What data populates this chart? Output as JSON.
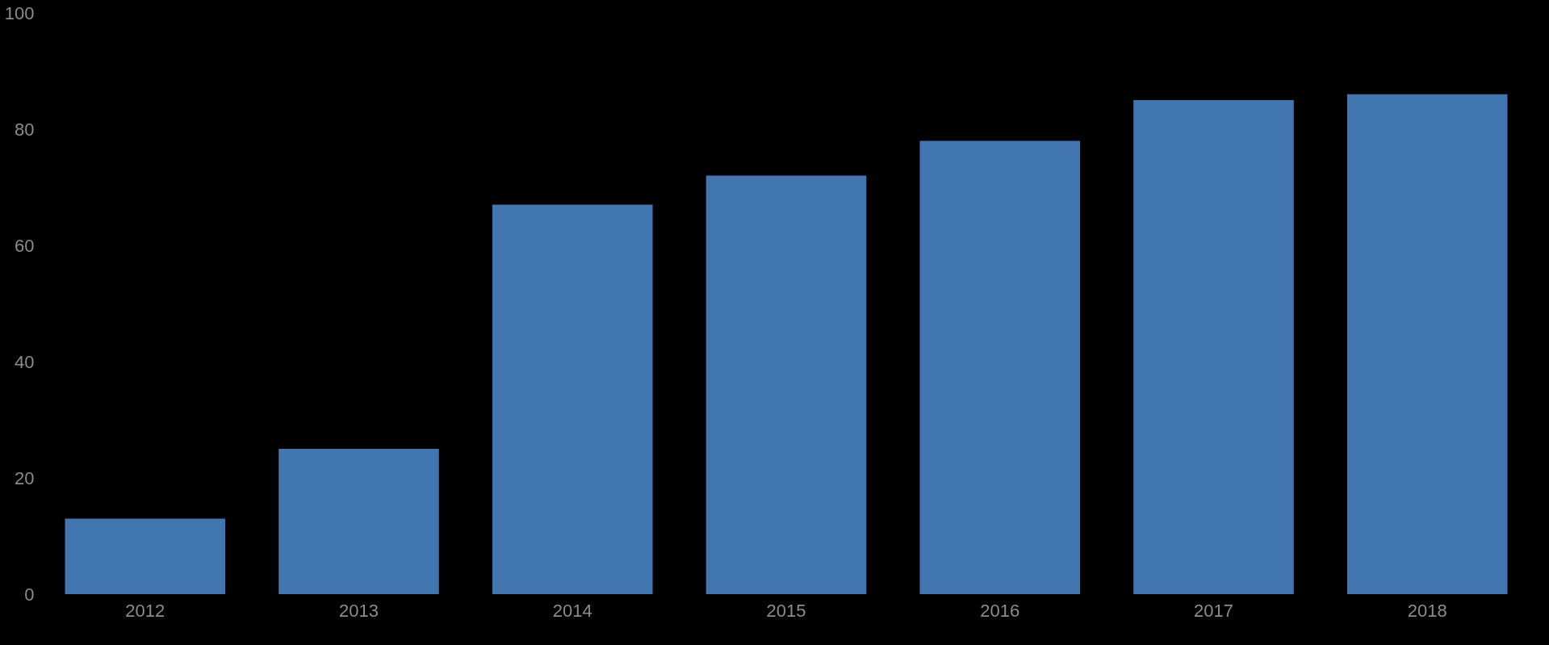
{
  "chart_data": {
    "type": "bar",
    "categories": [
      "2012",
      "2013",
      "2014",
      "2015",
      "2016",
      "2017",
      "2018"
    ],
    "values": [
      13,
      25,
      67,
      72,
      78,
      85,
      86
    ],
    "color": "#4276b0",
    "ylim": [
      0,
      100
    ],
    "yticks": [
      0,
      20,
      40,
      60,
      80,
      100
    ],
    "grid": false
  }
}
